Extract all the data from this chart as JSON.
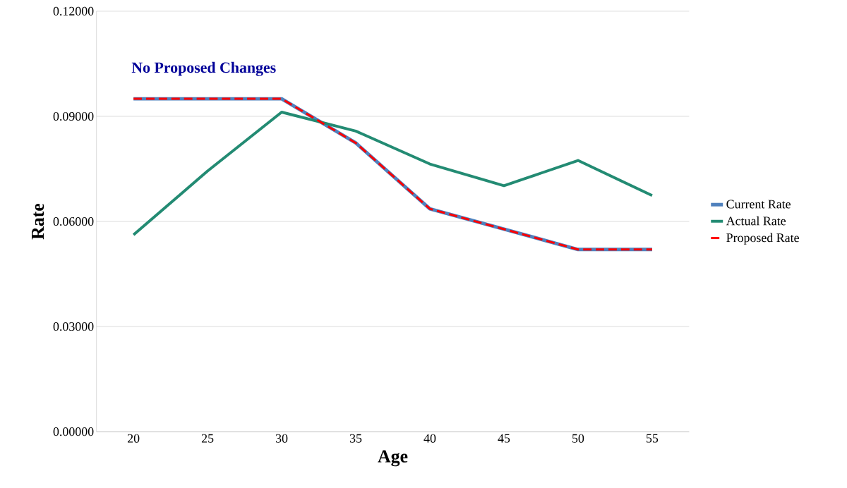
{
  "chart_data": {
    "type": "line",
    "xlabel": "Age",
    "ylabel": "Rate",
    "categories": [
      "20",
      "25",
      "30",
      "35",
      "40",
      "45",
      "50",
      "55"
    ],
    "series": [
      {
        "name": "Current Rate",
        "color": "#4f81bd",
        "line_style": "solid",
        "values": [
          0.095,
          0.095,
          0.095,
          0.0824,
          0.0636,
          0.0578,
          0.052,
          0.052
        ]
      },
      {
        "name": "Actual Rate",
        "color": "#238b73",
        "line_style": "solid",
        "values": [
          0.0562,
          0.0744,
          0.0912,
          0.0858,
          0.0764,
          0.0702,
          0.0774,
          0.0674
        ]
      },
      {
        "name": "Proposed Rate",
        "color": "#ff0000",
        "line_style": "dashed",
        "values": [
          0.095,
          0.095,
          0.095,
          0.0824,
          0.0636,
          0.0578,
          0.052,
          0.052
        ]
      }
    ],
    "ylim": [
      0,
      0.12
    ],
    "yticks": [
      {
        "value": 0,
        "label": "0.00000"
      },
      {
        "value": 0.03,
        "label": "0.03000"
      },
      {
        "value": 0.06,
        "label": "0.06000"
      },
      {
        "value": 0.09,
        "label": "0.09000"
      },
      {
        "value": 0.12,
        "label": "0.12000"
      }
    ],
    "grid": "y",
    "legend": "right",
    "marker": "none",
    "annotations": [
      "No Proposed Changes"
    ]
  }
}
